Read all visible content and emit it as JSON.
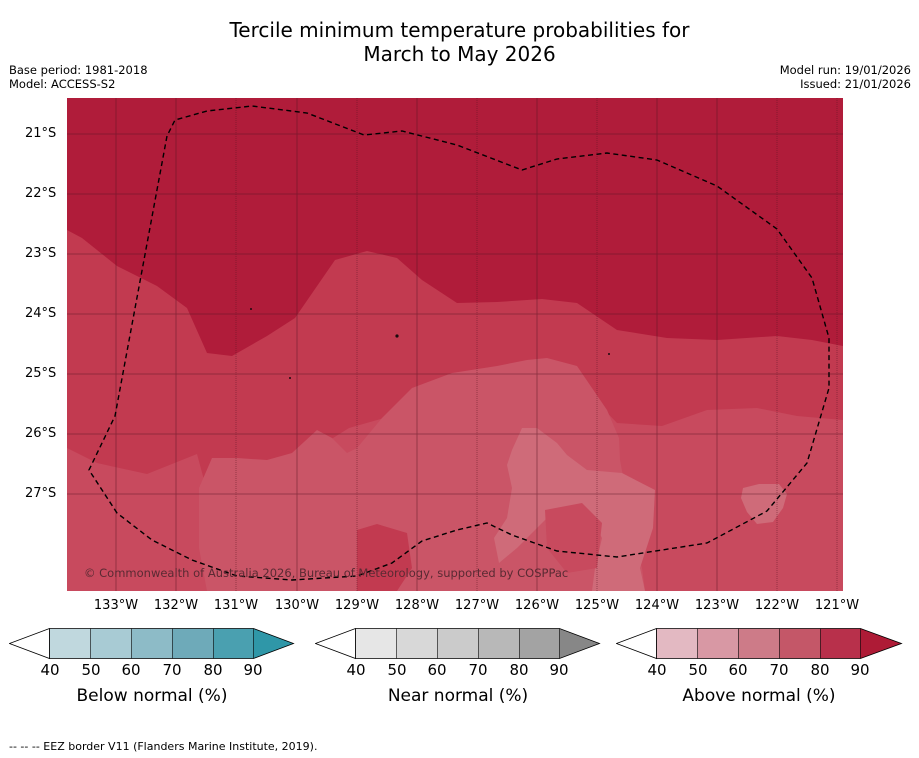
{
  "title_line1": "Tercile minimum temperature probabilities for",
  "title_line2": "March to May 2026",
  "base_period": "Base period: 1981-2018",
  "model": "Model: ACCESS-S2",
  "model_run": "Model run: 19/01/2026",
  "issued": "Issued: 21/01/2026",
  "lat_labels": [
    "21°S",
    "22°S",
    "23°S",
    "24°S",
    "25°S",
    "26°S",
    "27°S"
  ],
  "lon_labels": [
    "133°W",
    "132°W",
    "131°W",
    "130°W",
    "129°W",
    "128°W",
    "127°W",
    "126°W",
    "125°W",
    "124°W",
    "123°W",
    "122°W",
    "121°W"
  ],
  "copyright": "© Commonwealth of Australia 2026, Bureau of Meteorology, supported by COSPPac",
  "colorbars": [
    {
      "label": "Below normal (%)",
      "ticks": [
        "40",
        "50",
        "60",
        "70",
        "80",
        "90"
      ],
      "colors": [
        "#c0d8de",
        "#a8cbd4",
        "#8dbbc7",
        "#6eaab9",
        "#4aa0b0",
        "#2f97a8"
      ]
    },
    {
      "label": "Near normal (%)",
      "ticks": [
        "40",
        "50",
        "60",
        "70",
        "80",
        "90"
      ],
      "colors": [
        "#e6e6e6",
        "#d8d8d8",
        "#cbcbcb",
        "#b8b8b8",
        "#a3a3a3",
        "#878787"
      ]
    },
    {
      "label": "Above normal (%)",
      "ticks": [
        "40",
        "50",
        "60",
        "70",
        "80",
        "90"
      ],
      "colors": [
        "#e3b9c2",
        "#d898a4",
        "#cd7b88",
        "#c45768",
        "#b8304b",
        "#ae1b36"
      ]
    }
  ],
  "footnote": "-- -- -- EEZ border V11 (Flanders Marine Institute, 2019)."
}
